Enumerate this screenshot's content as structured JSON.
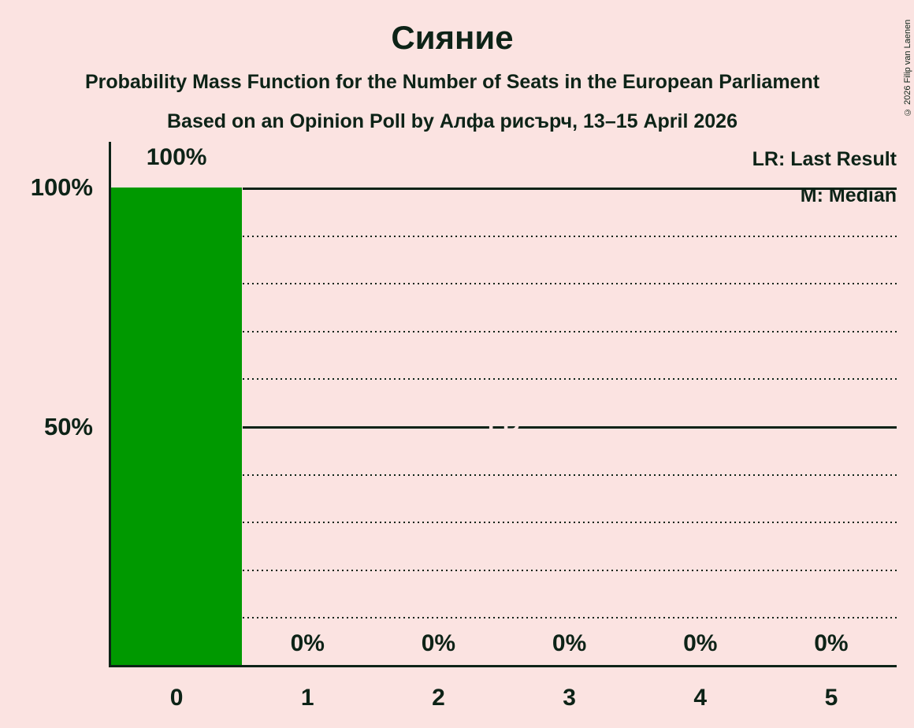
{
  "title": "Сияние",
  "subtitle": "Probability Mass Function for the Number of Seats in the European Parliament",
  "poll_line": "Based on an Opinion Poll by Алфа рисърч, 13–15 April 2026",
  "copyright": "© 2026 Filip van Laenen",
  "legend": {
    "lr": "LR: Last Result",
    "m": "M: Median"
  },
  "y_axis": {
    "labels": [
      "100%",
      "50%"
    ]
  },
  "colors": {
    "background": "#FBE3E1",
    "text": "#0D2317",
    "bar": "#009900",
    "bar_label_text": "#FBE3E1"
  },
  "chart_data": {
    "type": "bar",
    "title": "Сияние",
    "subtitle": "Probability Mass Function for the Number of Seats in the European Parliament",
    "source_line": "Based on an Opinion Poll by Алфа рисърч, 13–15 April 2026",
    "categories": [
      "0",
      "1",
      "2",
      "3",
      "4",
      "5"
    ],
    "values": [
      100,
      0,
      0,
      0,
      0,
      0
    ],
    "value_labels": [
      "100%",
      "0%",
      "0%",
      "0%",
      "0%",
      "0%"
    ],
    "xlabel": "",
    "ylabel": "",
    "ylim": [
      0,
      100
    ],
    "y_tick_labels_shown": [
      "100%",
      "50%"
    ],
    "grid": "dotted horizontal lines every 10%, solid lines at 50% and 100%",
    "legend_position": "top-right",
    "legend_entries": [
      "LR: Last Result",
      "M: Median"
    ],
    "bar_annotations": [
      "M",
      "LR"
    ],
    "annotated_bar_category": "0",
    "median_seats": 0,
    "last_result_seats": 0
  }
}
